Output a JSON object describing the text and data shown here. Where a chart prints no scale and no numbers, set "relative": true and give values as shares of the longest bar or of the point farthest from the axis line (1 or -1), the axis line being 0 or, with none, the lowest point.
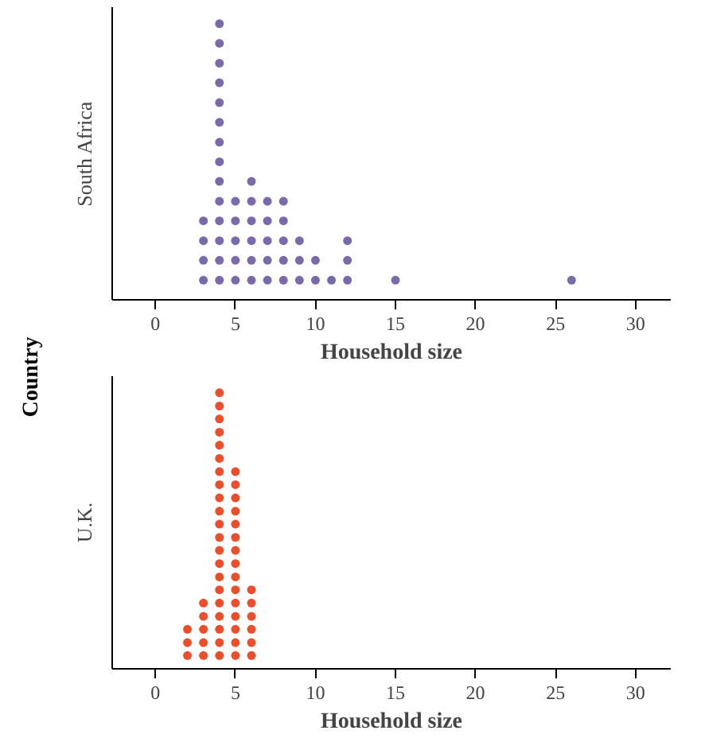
{
  "chart_data": [
    {
      "type": "scatter",
      "relative": true,
      "xlabel": "Household size",
      "ylabel": "South Africa",
      "xlim": [
        -2.7,
        32.2
      ],
      "xticks": [
        0,
        5,
        10,
        15,
        20,
        25,
        30
      ],
      "tick_labels": "x",
      "marker": "circle",
      "series": [
        {
          "color": "#7b6aa8",
          "x": [
            3,
            3,
            3,
            3,
            4,
            4,
            4,
            4,
            4,
            4,
            4,
            4,
            4,
            4,
            4,
            4,
            4,
            4,
            5,
            5,
            5,
            5,
            5,
            6,
            6,
            6,
            6,
            6,
            6,
            7,
            7,
            7,
            7,
            7,
            8,
            8,
            8,
            8,
            8,
            9,
            9,
            9,
            10,
            10,
            11,
            12,
            12,
            12,
            15,
            26
          ],
          "values": [
            0.071,
            0.143,
            0.214,
            0.286,
            0.071,
            0.143,
            0.214,
            0.286,
            0.357,
            0.429,
            0.5,
            0.571,
            0.643,
            0.714,
            0.786,
            0.857,
            0.929,
            1,
            0.071,
            0.143,
            0.214,
            0.286,
            0.357,
            0.071,
            0.143,
            0.214,
            0.286,
            0.357,
            0.429,
            0.071,
            0.143,
            0.214,
            0.286,
            0.357,
            0.071,
            0.143,
            0.214,
            0.286,
            0.357,
            0.071,
            0.143,
            0.214,
            0.071,
            0.143,
            0.071,
            0.071,
            0.143,
            0.214,
            0.071,
            0.071
          ]
        }
      ],
      "annotations": [
        "Country"
      ]
    },
    {
      "type": "scatter",
      "relative": true,
      "xlabel": "Household size",
      "ylabel": "U.K.",
      "xlim": [
        -2.7,
        32.2
      ],
      "xticks": [
        0,
        5,
        10,
        15,
        20,
        25,
        30
      ],
      "tick_labels": "x",
      "marker": "circle",
      "series": [
        {
          "color": "#e84f2c",
          "x": [
            2,
            2,
            2,
            3,
            3,
            3,
            3,
            3,
            4,
            4,
            4,
            4,
            4,
            4,
            4,
            4,
            4,
            4,
            4,
            4,
            4,
            4,
            4,
            4,
            4,
            4,
            4,
            4,
            4,
            5,
            5,
            5,
            5,
            5,
            5,
            5,
            5,
            5,
            5,
            5,
            5,
            5,
            5,
            5,
            6,
            6,
            6,
            6,
            6,
            6
          ],
          "values": [
            0.048,
            0.095,
            0.143,
            0.048,
            0.095,
            0.143,
            0.19,
            0.238,
            0.048,
            0.095,
            0.143,
            0.19,
            0.238,
            0.286,
            0.333,
            0.381,
            0.429,
            0.476,
            0.524,
            0.571,
            0.619,
            0.667,
            0.714,
            0.762,
            0.81,
            0.857,
            0.905,
            0.952,
            1,
            0.048,
            0.095,
            0.143,
            0.19,
            0.238,
            0.286,
            0.333,
            0.381,
            0.429,
            0.476,
            0.524,
            0.571,
            0.619,
            0.667,
            0.714,
            0.048,
            0.095,
            0.143,
            0.19,
            0.238,
            0.286
          ]
        }
      ]
    }
  ]
}
